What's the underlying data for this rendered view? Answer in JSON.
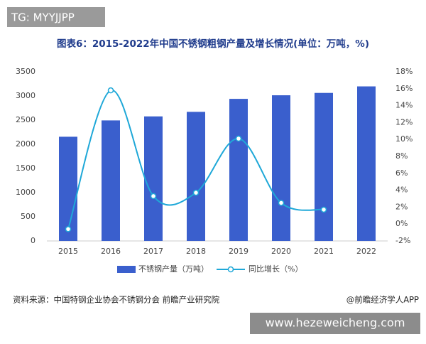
{
  "header": {
    "tag": "TG: MYYJJPP"
  },
  "chart_data": {
    "type": "bar-line",
    "title": "图表6：2015-2022年中国不锈钢粗钢产量及增长情况(单位：万吨，%)",
    "categories": [
      "2015",
      "2016",
      "2017",
      "2018",
      "2019",
      "2020",
      "2021",
      "2022"
    ],
    "series": [
      {
        "name": "不锈钢产量（万吨）",
        "color": "#3a5fcd",
        "values": [
          2156,
          2494,
          2577,
          2671,
          2940,
          3014,
          3063,
          3198
        ]
      },
      {
        "name": "同比增长（%）",
        "color": "#1fa8d8",
        "axis": "y2",
        "values": [
          -0.6,
          15.8,
          3.3,
          3.7,
          10.1,
          2.5,
          1.7,
          null
        ]
      }
    ],
    "ylim": [
      0,
      3500
    ],
    "yticks": [
      0,
      500,
      1000,
      1500,
      2000,
      2500,
      3000,
      3500
    ],
    "y2lim": [
      -2,
      18
    ],
    "y2ticks": [
      {
        "value": -2,
        "label": "-2%"
      },
      {
        "value": 0,
        "label": "0%"
      },
      {
        "value": 2,
        "label": "2%"
      },
      {
        "value": 4,
        "label": "4%"
      },
      {
        "value": 6,
        "label": "6%"
      },
      {
        "value": 8,
        "label": "8%"
      },
      {
        "value": 10,
        "label": "10%"
      },
      {
        "value": 12,
        "label": "12%"
      },
      {
        "value": 14,
        "label": "14%"
      },
      {
        "value": 16,
        "label": "16%"
      },
      {
        "value": 18,
        "label": "18%"
      }
    ],
    "source": "资料来源：中国特钢企业协会不锈钢分会 前瞻产业研究院",
    "credit": "@前瞻经济学人APP"
  },
  "footer": {
    "watermark": "www.hezeweicheng.com"
  }
}
